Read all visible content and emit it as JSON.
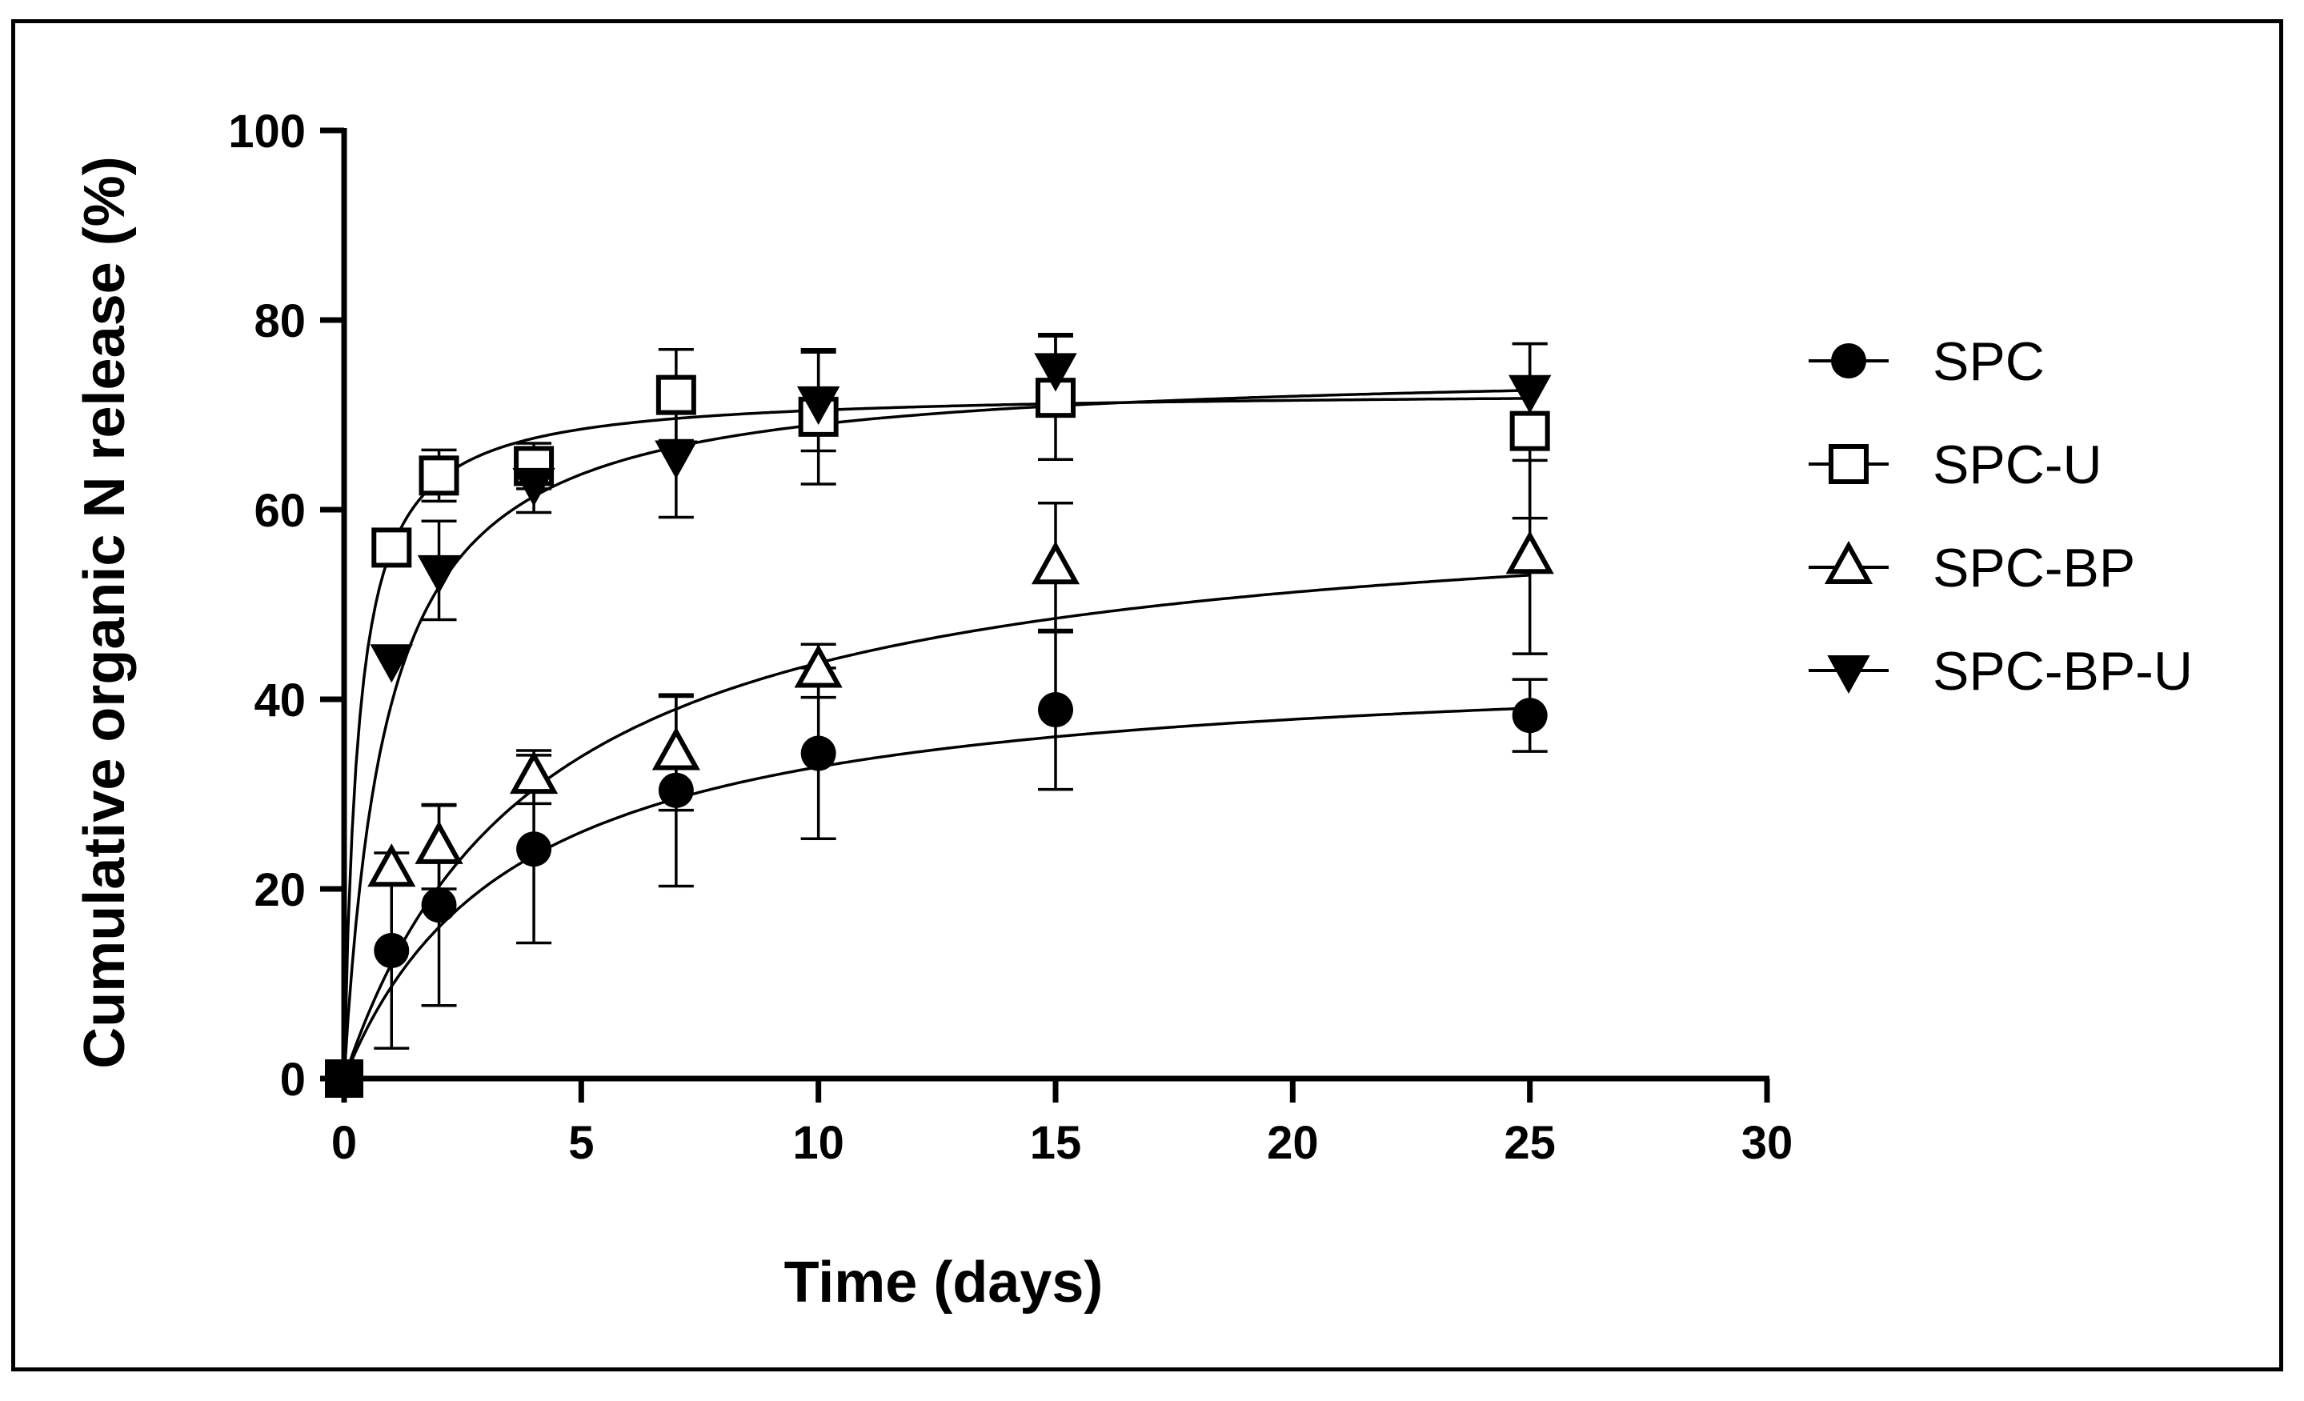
{
  "chart_data": {
    "type": "scatter",
    "title": "",
    "xlabel": "Time (days)",
    "ylabel": "Cumulative organic N release (%)",
    "xlim": [
      0,
      30
    ],
    "ylim": [
      0,
      100
    ],
    "xticks": [
      0,
      5,
      10,
      15,
      20,
      25,
      30
    ],
    "yticks": [
      0,
      20,
      40,
      60,
      80,
      100
    ],
    "x_tick_labels": [
      "0",
      "5",
      "10",
      "15",
      "20",
      "25",
      "30"
    ],
    "y_tick_labels": [
      "0",
      "20",
      "40",
      "60",
      "80",
      "100"
    ],
    "legend_position": "right",
    "grid": false,
    "series": [
      {
        "name": "SPC",
        "marker": "circle-filled",
        "x": [
          0,
          1,
          2,
          4,
          7,
          10,
          15,
          25
        ],
        "y": [
          0,
          13.5,
          18.3,
          24.2,
          30.4,
          34.3,
          38.9,
          38.3
        ],
        "err": [
          0,
          10.3,
          10.6,
          9.9,
          10.1,
          9.0,
          8.4,
          3.8
        ],
        "fit": {
          "model": "hyperbola",
          "ymax": 44.7,
          "k": 3.6
        }
      },
      {
        "name": "SPC-U",
        "marker": "square-open",
        "x": [
          0,
          1,
          2,
          4,
          7,
          10,
          15,
          25
        ],
        "y": [
          0,
          56.0,
          63.6,
          64.6,
          72.1,
          69.8,
          71.8,
          68.3
        ],
        "err": [
          0,
          0,
          2.7,
          2.4,
          4.8,
          7.1,
          6.5,
          9.2
        ],
        "fit": {
          "model": "hyperbola",
          "ymax": 72.6,
          "k": 0.3
        }
      },
      {
        "name": "SPC-BP",
        "marker": "triangle-up-open",
        "x": [
          0,
          1,
          2,
          4,
          7,
          10,
          15,
          25
        ],
        "y": [
          0,
          22.0,
          24.4,
          31.8,
          34.3,
          43.0,
          53.9,
          55.0
        ],
        "err": [
          0,
          0,
          4.4,
          2.8,
          6.0,
          2.8,
          6.8,
          10.2
        ],
        "fit": {
          "model": "hyperbola",
          "ymax": 61.8,
          "k": 4.1
        }
      },
      {
        "name": "SPC-BP-U",
        "marker": "triangle-down-filled",
        "x": [
          0,
          1,
          2,
          4,
          7,
          10,
          15,
          25
        ],
        "y": [
          0,
          44.2,
          53.6,
          62.8,
          65.7,
          71.4,
          74.9,
          72.6
        ],
        "err": [
          0,
          0,
          5.2,
          3.1,
          6.5,
          5.2,
          3.6,
          4.9
        ],
        "fit": {
          "model": "hyperbola",
          "ymax": 75.2,
          "k": 0.9
        }
      }
    ]
  }
}
